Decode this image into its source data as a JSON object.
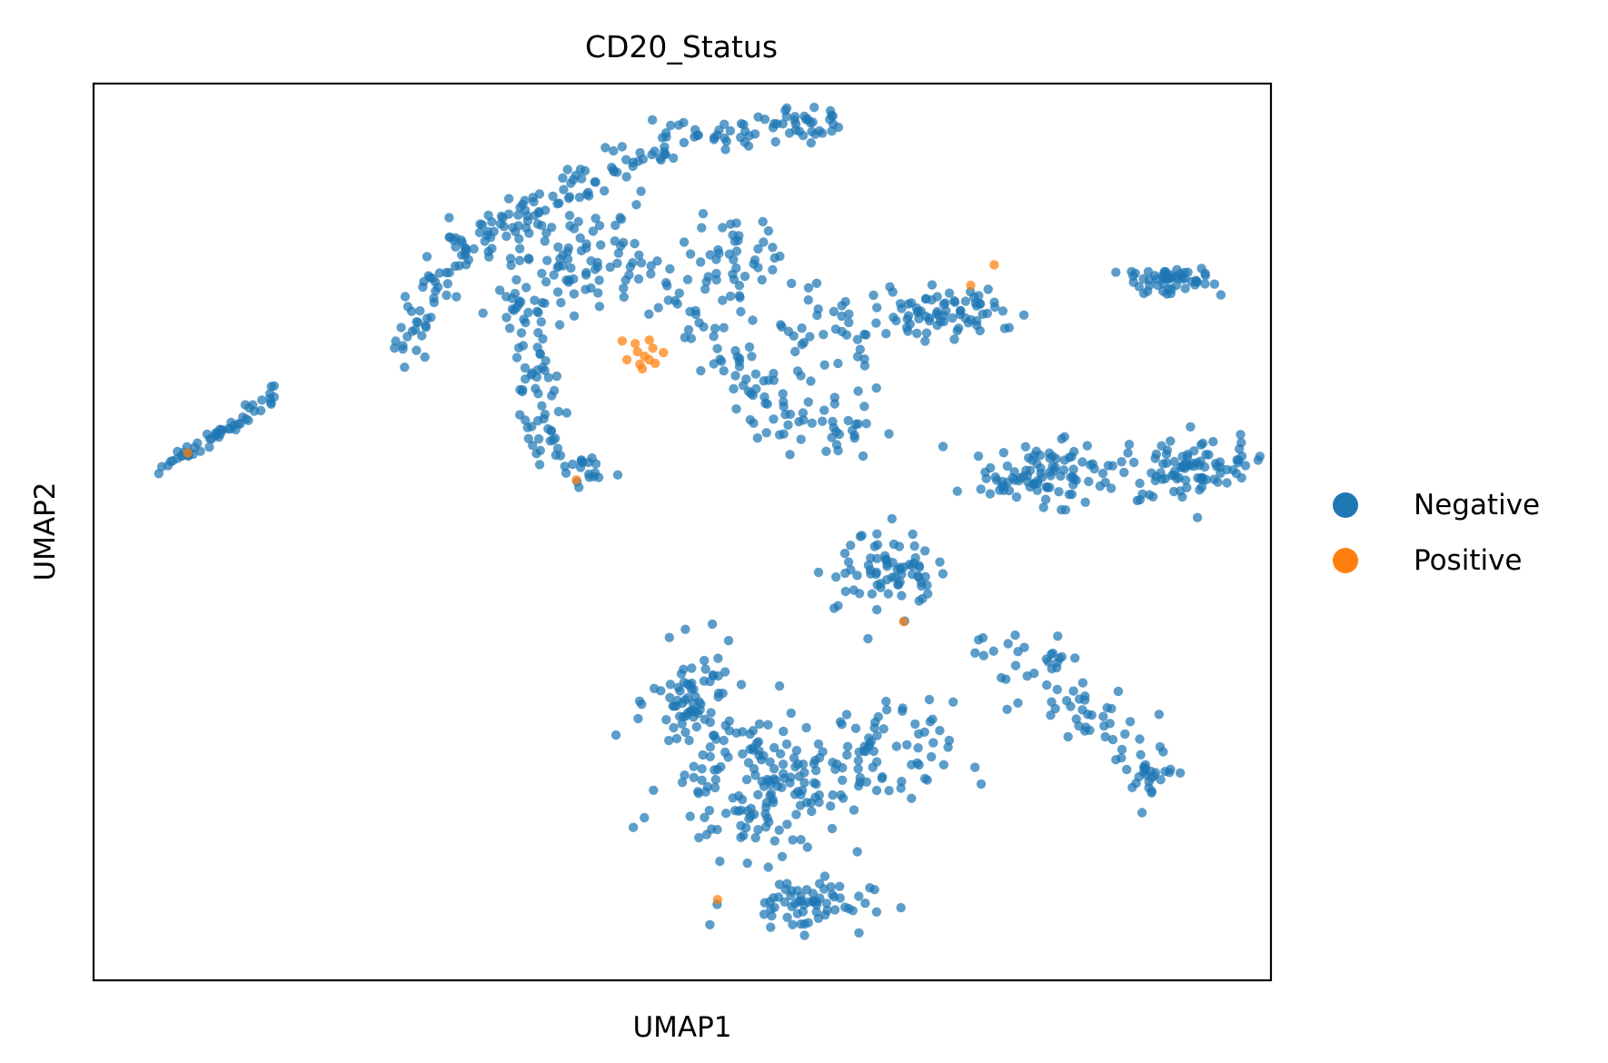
{
  "chart_data": {
    "type": "scatter",
    "title": "CD20_Status",
    "xlabel": "UMAP1",
    "ylabel": "UMAP2",
    "xlim": [
      0,
      100
    ],
    "ylim": [
      0,
      100
    ],
    "grid": false,
    "ticks_shown": false,
    "legend_position": "right",
    "series": [
      {
        "name": "Negative",
        "color": "#1f77b4",
        "clusters": [
          {
            "curve": [
              [
                4.5,
                56.5
              ],
              [
                8,
                58.8
              ],
              [
                11.5,
                61.5
              ],
              [
                15.5,
                66
              ]
            ],
            "spread": 0.45,
            "n": 55
          },
          {
            "curve": [
              [
                26,
                70
              ],
              [
                28,
                76
              ],
              [
                31,
                81
              ],
              [
                35,
                84
              ]
            ],
            "spread": 1.0,
            "n": 70
          },
          {
            "curve": [
              [
                35,
                84
              ],
              [
                40,
                88
              ],
              [
                45,
                91
              ],
              [
                52,
                94
              ],
              [
                58,
                95.5
              ],
              [
                64,
                95.5
              ]
            ],
            "spread": 1.0,
            "n": 130
          },
          {
            "center": [
              41,
              80
            ],
            "sx": 6,
            "sy": 6,
            "n": 100
          },
          {
            "center": [
              55,
              80
            ],
            "sx": 3,
            "sy": 5,
            "n": 45
          },
          {
            "curve": [
              [
                36,
                76
              ],
              [
                37,
                71
              ],
              [
                37.5,
                66
              ],
              [
                38,
                61
              ],
              [
                40,
                58
              ],
              [
                43,
                56
              ]
            ],
            "spread": 0.9,
            "n": 85
          },
          {
            "curve": [
              [
                49,
                77
              ],
              [
                53,
                71
              ],
              [
                58,
                63
              ],
              [
                61,
                62
              ],
              [
                65,
                61
              ]
            ],
            "spread": 1.5,
            "n": 90
          },
          {
            "center": [
              63,
              72
            ],
            "sx": 4,
            "sy": 4,
            "n": 40
          },
          {
            "center": [
              72,
              74
            ],
            "sx": 5,
            "sy": 2.5,
            "n": 75
          },
          {
            "center": [
              91.5,
              78
            ],
            "sx": 3.5,
            "sy": 1.2,
            "n": 55
          },
          {
            "center": [
              80,
              56.5
            ],
            "sx": 5,
            "sy": 3,
            "n": 90
          },
          {
            "center": [
              93,
              57
            ],
            "sx": 4.5,
            "sy": 3,
            "n": 95
          },
          {
            "center": [
              67.5,
              46
            ],
            "sx": 3.5,
            "sy": 3.5,
            "n": 75
          },
          {
            "curve": [
              [
                76,
                38
              ],
              [
                80,
                35
              ],
              [
                84,
                30
              ],
              [
                88,
                25
              ],
              [
                91,
                22
              ]
            ],
            "spread": 1.6,
            "n": 90
          },
          {
            "center": [
              51,
              31
            ],
            "sx": 3,
            "sy": 5,
            "n": 70
          },
          {
            "center": [
              57,
              22
            ],
            "sx": 7,
            "sy": 7,
            "n": 160
          },
          {
            "center": [
              60,
              8.5
            ],
            "sx": 5,
            "sy": 2.5,
            "n": 65
          },
          {
            "center": [
              67,
              25
            ],
            "sx": 5,
            "sy": 5,
            "n": 60
          }
        ]
      },
      {
        "name": "Positive",
        "color": "#ff7f0e",
        "points": [
          [
            44.9,
            71.3
          ],
          [
            46.0,
            71.0
          ],
          [
            47.2,
            71.4
          ],
          [
            47.5,
            70.5
          ],
          [
            46.2,
            70.1
          ],
          [
            48.4,
            70.0
          ],
          [
            46.8,
            69.6
          ],
          [
            45.3,
            69.2
          ],
          [
            46.4,
            68.7
          ],
          [
            47.7,
            68.8
          ],
          [
            46.6,
            68.2
          ],
          [
            47.2,
            69.2
          ],
          [
            8.0,
            58.8
          ],
          [
            41.0,
            55.8
          ],
          [
            68.8,
            40.0
          ],
          [
            74.5,
            77.5
          ],
          [
            76.5,
            79.8
          ],
          [
            53.0,
            9.0
          ]
        ]
      }
    ]
  }
}
